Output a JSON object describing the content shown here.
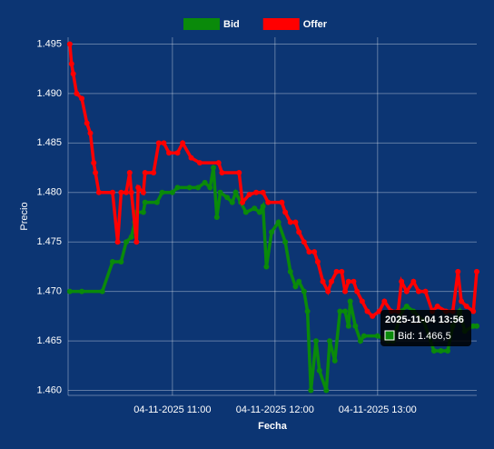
{
  "chart_data": {
    "type": "line",
    "x_label": "Fecha",
    "y_label": "Precio",
    "xlim": [
      "2025-11-04 09:59",
      "2025-11-04 13:58"
    ],
    "xticks": [
      {
        "value": "2025-11-04 11:00",
        "label": "04-11-2025 11:00"
      },
      {
        "value": "2025-11-04 12:00",
        "label": "04-11-2025 12:00"
      },
      {
        "value": "2025-11-04 13:00",
        "label": "04-11-2025 13:00"
      }
    ],
    "ylim": [
      1.4595,
      1.4955
    ],
    "yticks": [
      1.495,
      {
        "value": 1.49,
        "label": "1.490"
      },
      1.485,
      {
        "value": 1.48,
        "label": "1.480"
      },
      1.475,
      {
        "value": 1.47,
        "label": "1.470"
      },
      1.465,
      {
        "value": 1.46,
        "label": "1.460"
      }
    ],
    "grid": true,
    "legend": "top",
    "series": [
      {
        "name": "Bid",
        "color": "#0a8a0a",
        "x": [
          "2025-11-04 10:00",
          "2025-11-04 10:07",
          "2025-11-04 10:19",
          "2025-11-04 10:25",
          "2025-11-04 10:30",
          "2025-11-04 10:33",
          "2025-11-04 10:36",
          "2025-11-04 10:38",
          "2025-11-04 10:39",
          "2025-11-04 10:43",
          "2025-11-04 10:44",
          "2025-11-04 10:51",
          "2025-11-04 10:54",
          "2025-11-04 11:00",
          "2025-11-04 11:03",
          "2025-11-04 11:10",
          "2025-11-04 11:15",
          "2025-11-04 11:19",
          "2025-11-04 11:22",
          "2025-11-04 11:24",
          "2025-11-04 11:26",
          "2025-11-04 11:28",
          "2025-11-04 11:32",
          "2025-11-04 11:35",
          "2025-11-04 11:37",
          "2025-11-04 11:40",
          "2025-11-04 11:43",
          "2025-11-04 11:48",
          "2025-11-04 11:51",
          "2025-11-04 11:53",
          "2025-11-04 11:55",
          "2025-11-04 11:58",
          "2025-11-04 12:02",
          "2025-11-04 12:06",
          "2025-11-04 12:09",
          "2025-11-04 12:12",
          "2025-11-04 12:14",
          "2025-11-04 12:17",
          "2025-11-04 12:19",
          "2025-11-04 12:21",
          "2025-11-04 12:24",
          "2025-11-04 12:26",
          "2025-11-04 12:30",
          "2025-11-04 12:32",
          "2025-11-04 12:35",
          "2025-11-04 12:38",
          "2025-11-04 12:41",
          "2025-11-04 12:43",
          "2025-11-04 12:44",
          "2025-11-04 12:47",
          "2025-11-04 12:50",
          "2025-11-04 12:52",
          "2025-11-04 13:00",
          "2025-11-04 13:06",
          "2025-11-04 13:09",
          "2025-11-04 13:14",
          "2025-11-04 13:17",
          "2025-11-04 13:21",
          "2025-11-04 13:27",
          "2025-11-04 13:33",
          "2025-11-04 13:37",
          "2025-11-04 13:41",
          "2025-11-04 13:44",
          "2025-11-04 13:48",
          "2025-11-04 13:51",
          "2025-11-04 13:56",
          "2025-11-04 13:58"
        ],
        "values": [
          1.47,
          1.47,
          1.47,
          1.473,
          1.473,
          1.475,
          1.4755,
          1.477,
          1.478,
          1.478,
          1.479,
          1.479,
          1.48,
          1.48,
          1.4805,
          1.4805,
          1.4805,
          1.481,
          1.4805,
          1.4825,
          1.4775,
          1.48,
          1.4795,
          1.479,
          1.48,
          1.479,
          1.478,
          1.4784,
          1.478,
          1.4786,
          1.4725,
          1.476,
          1.477,
          1.475,
          1.472,
          1.4705,
          1.471,
          1.47,
          1.468,
          1.46,
          1.465,
          1.462,
          1.46,
          1.465,
          1.463,
          1.468,
          1.468,
          1.4665,
          1.469,
          1.4665,
          1.465,
          1.4655,
          1.4655,
          1.465,
          1.465,
          1.468,
          1.4685,
          1.468,
          1.467,
          1.464,
          1.464,
          1.464,
          1.4665,
          1.468,
          1.466,
          1.4665,
          1.4665
        ]
      },
      {
        "name": "Offer",
        "color": "#ff0000",
        "x": [
          "2025-11-04 10:00",
          "2025-11-04 10:01",
          "2025-11-04 10:02",
          "2025-11-04 10:04",
          "2025-11-04 10:07",
          "2025-11-04 10:10",
          "2025-11-04 10:12",
          "2025-11-04 10:14",
          "2025-11-04 10:15",
          "2025-11-04 10:17",
          "2025-11-04 10:25",
          "2025-11-04 10:28",
          "2025-11-04 10:30",
          "2025-11-04 10:33",
          "2025-11-04 10:35",
          "2025-11-04 10:36",
          "2025-11-04 10:39",
          "2025-11-04 10:40",
          "2025-11-04 10:43",
          "2025-11-04 10:44",
          "2025-11-04 10:49",
          "2025-11-04 10:52",
          "2025-11-04 10:55",
          "2025-11-04 10:58",
          "2025-11-04 11:03",
          "2025-11-04 11:06",
          "2025-11-04 11:11",
          "2025-11-04 11:16",
          "2025-11-04 11:27",
          "2025-11-04 11:29",
          "2025-11-04 11:39",
          "2025-11-04 11:41",
          "2025-11-04 11:45",
          "2025-11-04 11:49",
          "2025-11-04 11:53",
          "2025-11-04 11:56",
          "2025-11-04 12:04",
          "2025-11-04 12:06",
          "2025-11-04 12:09",
          "2025-11-04 12:12",
          "2025-11-04 12:14",
          "2025-11-04 12:17",
          "2025-11-04 12:20",
          "2025-11-04 12:23",
          "2025-11-04 12:25",
          "2025-11-04 12:28",
          "2025-11-04 12:31",
          "2025-11-04 12:33",
          "2025-11-04 12:36",
          "2025-11-04 12:39",
          "2025-11-04 12:41",
          "2025-11-04 12:43",
          "2025-11-04 12:46",
          "2025-11-04 12:48",
          "2025-11-04 12:51",
          "2025-11-04 12:54",
          "2025-11-04 12:57",
          "2025-11-04 13:01",
          "2025-11-04 13:04",
          "2025-11-04 13:08",
          "2025-11-04 13:12",
          "2025-11-04 13:14",
          "2025-11-04 13:17",
          "2025-11-04 13:21",
          "2025-11-04 13:24",
          "2025-11-04 13:28",
          "2025-11-04 13:32",
          "2025-11-04 13:35",
          "2025-11-04 13:40",
          "2025-11-04 13:44",
          "2025-11-04 13:47",
          "2025-11-04 13:49",
          "2025-11-04 13:52",
          "2025-11-04 13:56",
          "2025-11-04 13:58"
        ],
        "values": [
          1.495,
          1.493,
          1.492,
          1.49,
          1.4895,
          1.487,
          1.486,
          1.483,
          1.482,
          1.48,
          1.48,
          1.475,
          1.48,
          1.48,
          1.482,
          1.48,
          1.475,
          1.4805,
          1.48,
          1.482,
          1.482,
          1.485,
          1.485,
          1.484,
          1.484,
          1.485,
          1.4835,
          1.483,
          1.483,
          1.482,
          1.482,
          1.479,
          1.4798,
          1.48,
          1.48,
          1.479,
          1.479,
          1.478,
          1.477,
          1.477,
          1.476,
          1.475,
          1.474,
          1.474,
          1.473,
          1.471,
          1.47,
          1.471,
          1.472,
          1.472,
          1.47,
          1.471,
          1.471,
          1.47,
          1.469,
          1.468,
          1.4675,
          1.468,
          1.469,
          1.468,
          1.468,
          1.471,
          1.47,
          1.471,
          1.47,
          1.47,
          1.468,
          1.4685,
          1.468,
          1.468,
          1.472,
          1.469,
          1.4685,
          1.468,
          1.472
        ]
      }
    ],
    "tooltip": {
      "title": "2025-11-04 13:56",
      "label": "Bid: 1.466,5"
    }
  }
}
